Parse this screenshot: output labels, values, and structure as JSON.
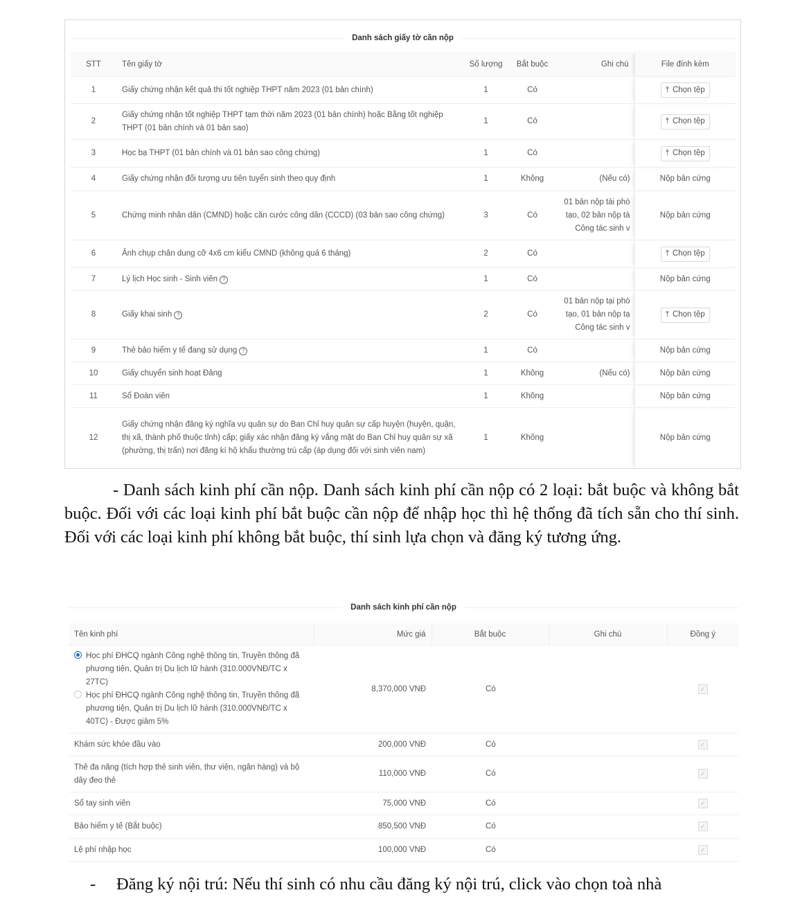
{
  "documents": {
    "title": "Danh sách giấy tờ cần nộp",
    "columns": [
      "STT",
      "Tên giấy tờ",
      "Số lượng",
      "Bắt buộc",
      "Ghi chú",
      "File đính kèm"
    ],
    "upload_label": "Chọn tệp",
    "rows": [
      {
        "stt": "1",
        "name": "Giấy chứng nhận kết quả thi tốt nghiệp THPT năm 2023 (01 bản chính)",
        "qty": "1",
        "required": "Có",
        "note": [],
        "file": "upload",
        "help": false
      },
      {
        "stt": "2",
        "name": "Giấy chứng nhận tốt nghiệp THPT tạm thời năm 2023 (01 bản chính) hoặc Bằng tốt nghiệp THPT (01 bản chính và 01 bản sao)",
        "qty": "1",
        "required": "Có",
        "note": [],
        "file": "upload",
        "help": false
      },
      {
        "stt": "3",
        "name": "Học bạ THPT (01 bản chính và 01 bản sao công chứng)",
        "qty": "1",
        "required": "Có",
        "note": [],
        "file": "upload",
        "help": false
      },
      {
        "stt": "4",
        "name": "Giấy chứng nhận đối tượng ưu tiên tuyển sinh theo quy định",
        "qty": "1",
        "required": "Không",
        "note": [
          "(Nếu có)"
        ],
        "file": "Nộp bản cứng",
        "help": false
      },
      {
        "stt": "5",
        "name": "Chứng minh nhân dân (CMND) hoặc căn cước công dân (CCCD) (03 bản sao công chứng)",
        "qty": "3",
        "required": "Có",
        "note": [
          "01 bản nộp tài phò",
          "tạo, 02 bản nộp tà",
          "Công tác sinh v"
        ],
        "file": "Nộp bản cứng",
        "help": false
      },
      {
        "stt": "6",
        "name": "Ảnh chụp chân dung cỡ 4x6 cm kiểu CMND (không quá 6 tháng)",
        "qty": "2",
        "required": "Có",
        "note": [],
        "file": "upload",
        "help": false
      },
      {
        "stt": "7",
        "name": "Lý lịch Học sinh - Sinh viên",
        "qty": "1",
        "required": "Có",
        "note": [],
        "file": "Nộp bản cứng",
        "help": true
      },
      {
        "stt": "8",
        "name": "Giấy khai sinh",
        "qty": "2",
        "required": "Có",
        "note": [
          "01 bản nộp tại phò",
          "tạo, 01 bản nộp tạ",
          "Công tác sinh v"
        ],
        "file": "upload",
        "help": true
      },
      {
        "stt": "9",
        "name": "Thẻ bảo hiểm y tế đang sử dụng",
        "qty": "1",
        "required": "Có",
        "note": [],
        "file": "Nộp bản cứng",
        "help": true
      },
      {
        "stt": "10",
        "name": "Giấy chuyển sinh hoạt Đảng",
        "qty": "1",
        "required": "Không",
        "note": [
          "(Nếu có)"
        ],
        "file": "Nộp bản cứng",
        "help": false
      },
      {
        "stt": "11",
        "name": "Sổ Đoàn viên",
        "qty": "1",
        "required": "Không",
        "note": [],
        "file": "Nộp bản cứng",
        "help": false
      },
      {
        "stt": "12",
        "name": "Giấy chứng nhận đăng ký nghĩa vụ quân sự do Ban Chỉ huy quân sự cấp huyện (huyện, quận, thị xã, thành phố thuộc tỉnh) cấp; giấy xác nhận đăng ký vắng mặt do Ban Chỉ huy quân sự xã (phường, thị trấn) nơi đăng kí hộ khẩu thường trú cấp (áp dụng đối với sinh viên nam)",
        "qty": "1",
        "required": "Không",
        "note": [],
        "file": "Nộp bản cứng",
        "help": false
      }
    ]
  },
  "paragraph": "- Danh sách kinh phí cần nộp. Danh sách kinh phí cần nộp có 2 loại: bắt buộc và không bắt buộc. Đối với các loại kinh phí bắt buộc cần nộp để nhập học thì hệ thống đã tích sẵn cho thí sinh. Đối với các loại kinh phí không bắt buộc, thí sinh lựa chọn và đăng ký tương ứng.",
  "fees": {
    "title": "Danh sách kinh phí cần nộp",
    "columns": [
      "Tên kinh phí",
      "Mức giá",
      "Bắt buộc",
      "Ghi chú",
      "Đồng ý"
    ],
    "tuition_options": [
      {
        "label": "Học phí ĐHCQ ngành Công nghệ thông tin, Truyền thông đã phương tiện, Quản trị Du lịch lữ hành (310.000VNĐ/TC x 27TC)",
        "selected": true
      },
      {
        "label": "Học phí ĐHCQ ngành Công nghệ thông tin, Truyền thông đã phương tiện, Quản trị Du lịch lữ hành (310.000VNĐ/TC x 40TC) - Được giảm 5%",
        "selected": false
      }
    ],
    "tuition_price": "8,370,000 VNĐ",
    "tuition_required": "Có",
    "rows": [
      {
        "name": "Khám sức khỏe đầu vào",
        "price": "200,000 VNĐ",
        "required": "Có",
        "agreed": true
      },
      {
        "name": "Thẻ đa năng (tích hợp thẻ sinh viên, thư viện, ngân hàng) và bộ dây đeo thẻ",
        "price": "110,000 VNĐ",
        "required": "Có",
        "agreed": true
      },
      {
        "name": "Sổ tay sinh viên",
        "price": "75,000 VNĐ",
        "required": "Có",
        "agreed": true
      },
      {
        "name": "Bảo hiểm y tế (Bắt buộc)",
        "price": "850,500 VNĐ",
        "required": "Có",
        "agreed": true
      },
      {
        "name": "Lệ phí nhập học",
        "price": "100,000 VNĐ",
        "required": "Có",
        "agreed": true
      }
    ]
  },
  "footer_bullet": "-",
  "footer_text": "Đăng ký nội trú: Nếu thí sinh có nhu cầu đăng ký nội trú, click vào chọn toà nhà"
}
